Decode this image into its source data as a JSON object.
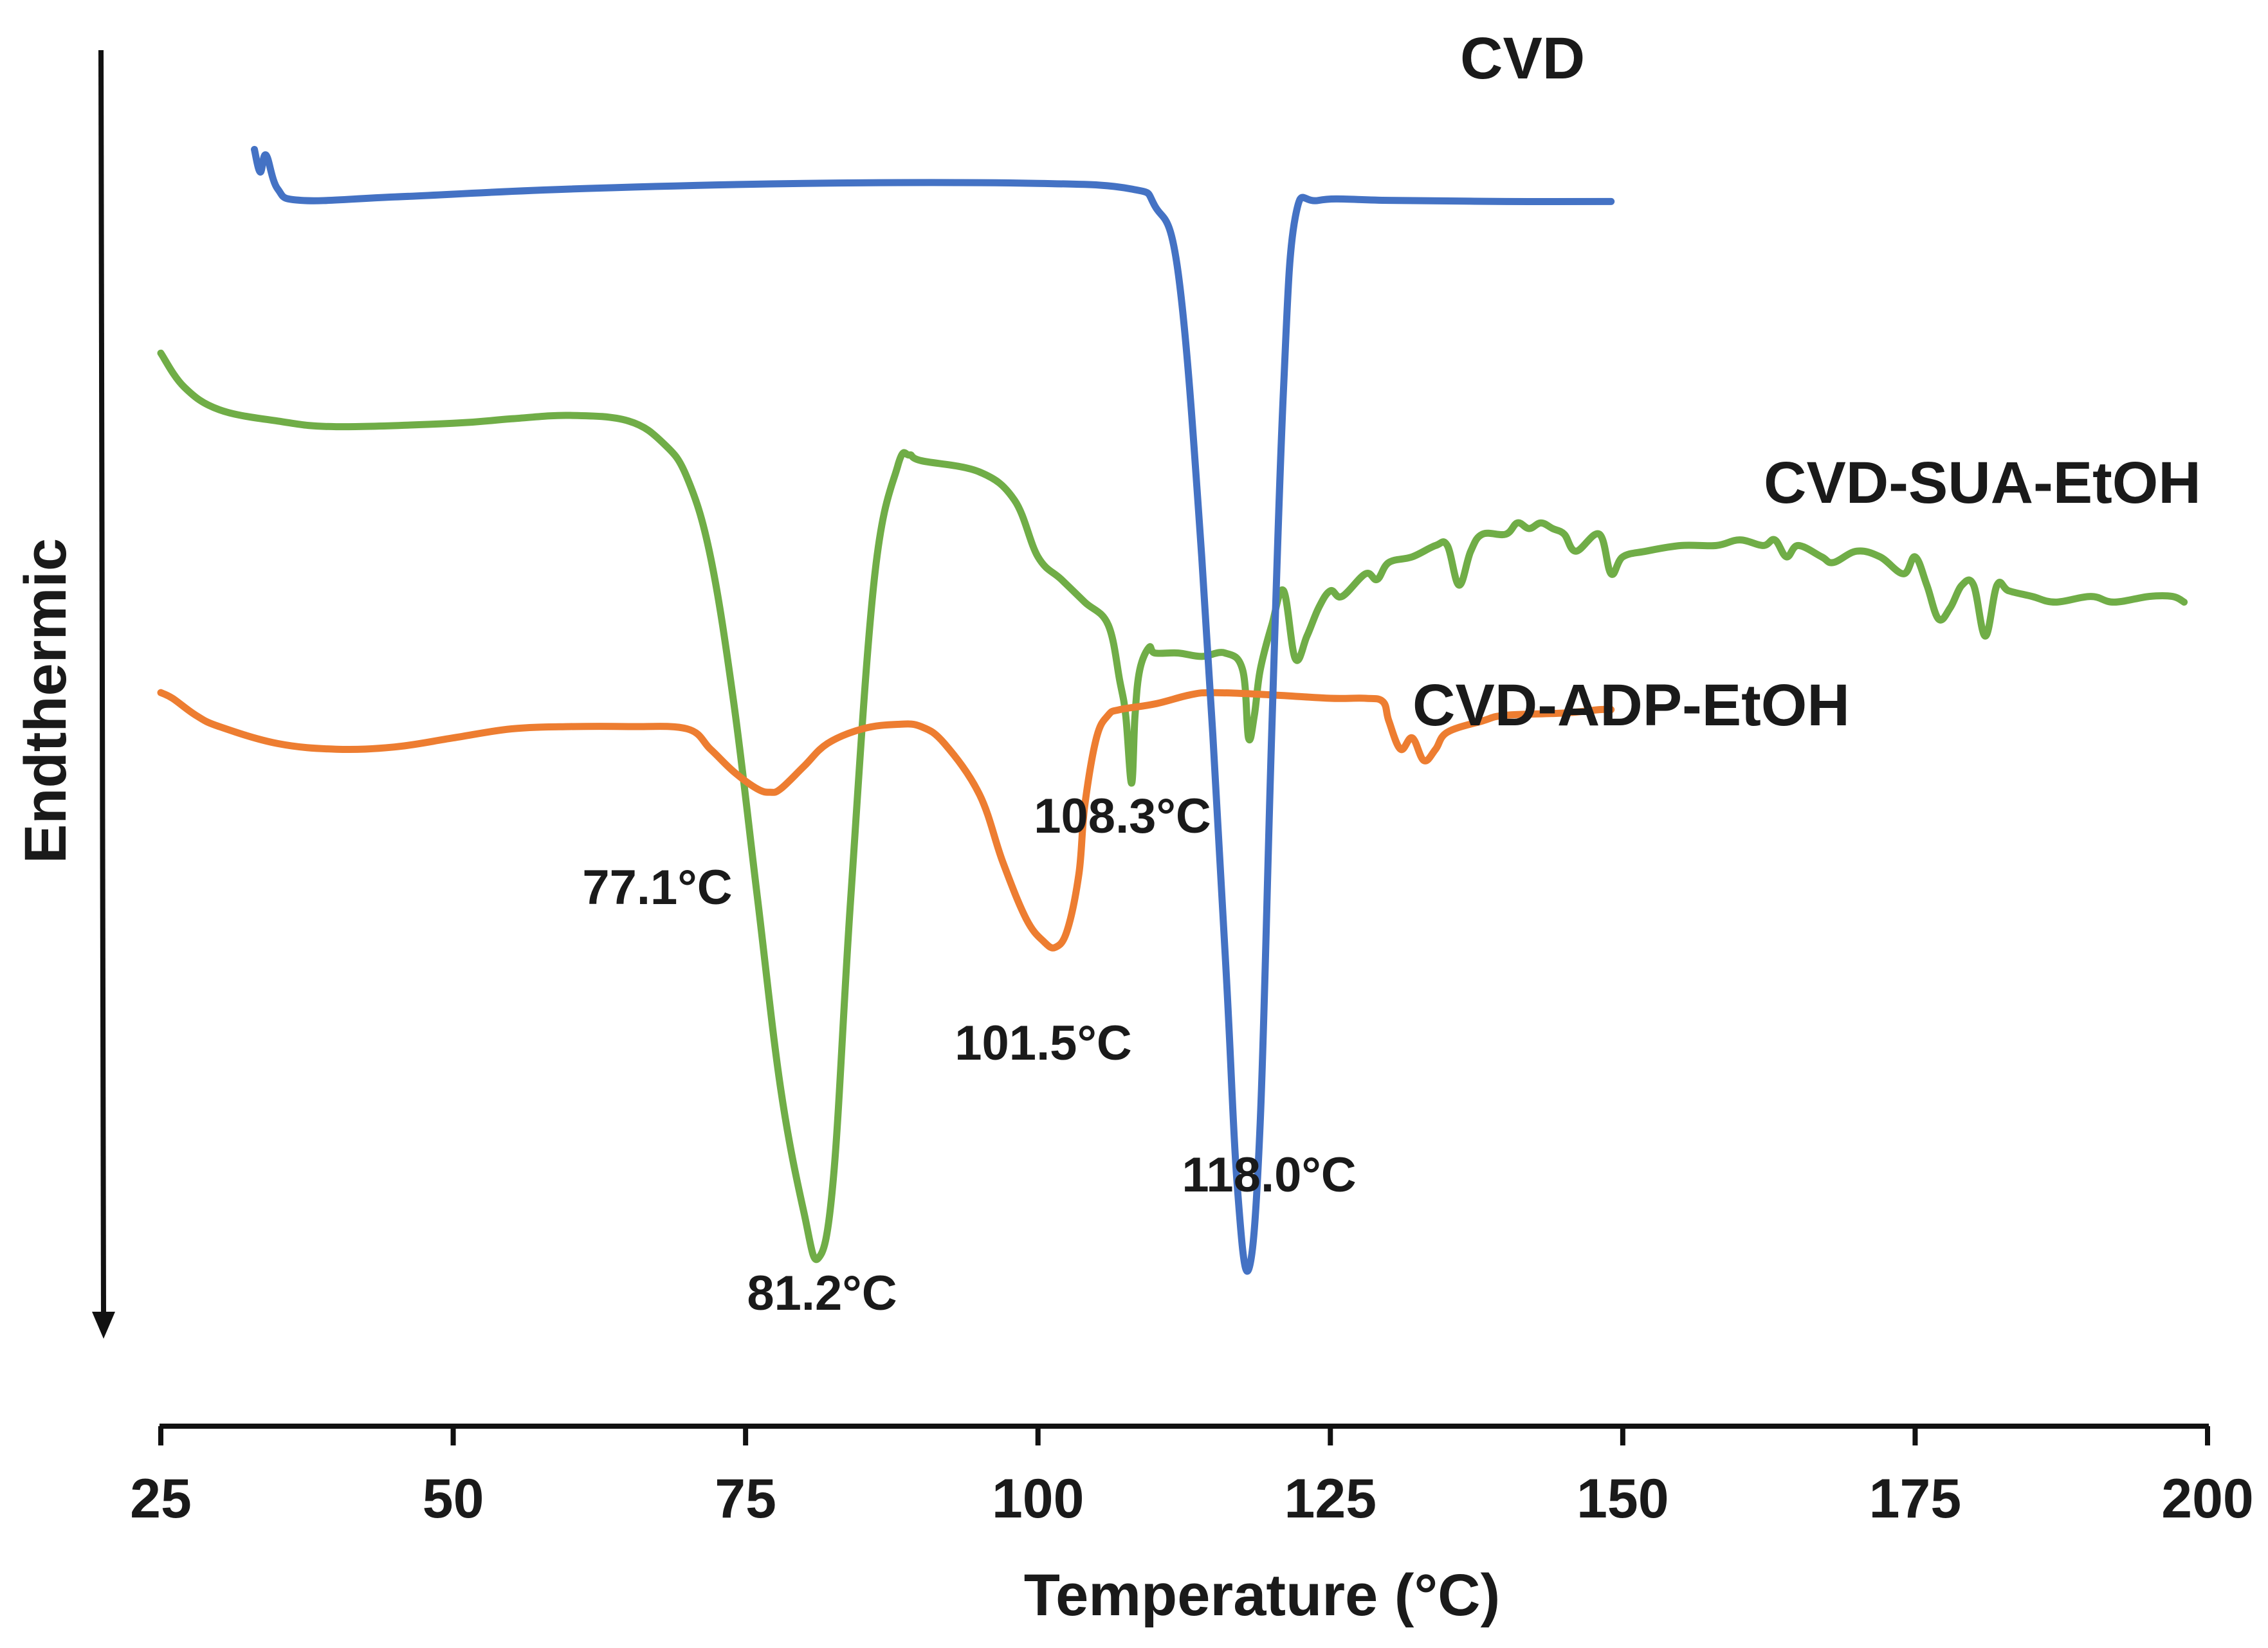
{
  "chart_data": {
    "type": "line",
    "title": "",
    "xlabel": "Temperature (°C)",
    "ylabel": "Endthermic",
    "xlim": [
      25,
      200
    ],
    "x_ticks": [
      "25",
      "50",
      "75",
      "100",
      "125",
      "150",
      "175",
      "200"
    ],
    "grid": false,
    "series": [
      {
        "name": "CVD",
        "color": "#4472C4",
        "x": [
          33,
          33.5,
          34,
          35,
          37,
          45,
          60,
          80,
          100,
          108,
          110,
          112,
          114,
          116,
          117,
          118,
          119,
          120,
          121,
          122,
          124,
          130,
          140,
          149
        ],
        "y": [
          0.96,
          0.94,
          0.955,
          0.925,
          0.915,
          0.918,
          0.925,
          0.93,
          0.93,
          0.925,
          0.91,
          0.85,
          0.6,
          0.25,
          0.05,
          -0.03,
          0.1,
          0.45,
          0.75,
          0.9,
          0.915,
          0.915,
          0.914,
          0.914
        ]
      },
      {
        "name": "CVD-SUA-EtOH",
        "color": "#70AD47",
        "x": [
          25,
          27,
          30,
          35,
          40,
          50,
          55,
          60,
          65,
          68,
          70,
          72,
          74,
          76,
          78,
          80,
          81.2,
          82.5,
          84,
          86,
          88,
          89,
          90,
          95,
          98,
          100,
          102,
          104,
          106,
          107,
          107.5,
          108,
          108.3,
          108.7,
          109.5,
          110,
          112,
          114,
          116,
          117.5,
          118,
          118.5,
          119,
          120,
          121,
          122,
          123,
          124,
          125,
          126,
          128,
          129,
          130,
          132,
          134,
          135,
          136,
          137,
          138,
          140,
          141,
          142,
          143,
          144,
          145,
          146,
          148,
          149,
          150,
          152,
          155,
          158,
          160,
          162,
          163,
          164,
          165,
          167,
          168,
          170,
          172,
          174,
          175,
          176,
          177,
          178,
          179,
          180,
          181,
          182,
          183,
          185,
          187,
          190,
          192,
          195,
          197,
          198
        ],
        "y": [
          0.78,
          0.75,
          0.73,
          0.72,
          0.715,
          0.718,
          0.722,
          0.725,
          0.72,
          0.7,
          0.67,
          0.6,
          0.47,
          0.3,
          0.13,
          0.02,
          -0.02,
          0.05,
          0.3,
          0.58,
          0.68,
          0.69,
          0.685,
          0.675,
          0.65,
          0.6,
          0.58,
          0.56,
          0.54,
          0.49,
          0.46,
          0.4,
          0.46,
          0.5,
          0.52,
          0.515,
          0.515,
          0.512,
          0.515,
          0.5,
          0.44,
          0.46,
          0.5,
          0.54,
          0.57,
          0.51,
          0.53,
          0.555,
          0.57,
          0.565,
          0.585,
          0.58,
          0.595,
          0.6,
          0.61,
          0.61,
          0.575,
          0.605,
          0.62,
          0.62,
          0.63,
          0.625,
          0.63,
          0.625,
          0.62,
          0.605,
          0.62,
          0.585,
          0.6,
          0.605,
          0.61,
          0.61,
          0.615,
          0.61,
          0.615,
          0.6,
          0.61,
          0.6,
          0.595,
          0.605,
          0.6,
          0.585,
          0.6,
          0.575,
          0.545,
          0.555,
          0.575,
          0.575,
          0.53,
          0.575,
          0.57,
          0.565,
          0.56,
          0.565,
          0.56,
          0.565,
          0.565,
          0.56
        ]
      },
      {
        "name": "CVD-ADP-EtOH",
        "color": "#ED7D31",
        "x": [
          25,
          26,
          28,
          30,
          35,
          40,
          45,
          50,
          55,
          60,
          65,
          70,
          72,
          74,
          76,
          77.1,
          78,
          80,
          82,
          85,
          88,
          90,
          92,
          95,
          97,
          99,
          100.5,
          101.5,
          102.5,
          103.5,
          104,
          105,
          106,
          107,
          110,
          113,
          115,
          120,
          125,
          128,
          129.5,
          130,
          131,
          132,
          133,
          134,
          135,
          138,
          140,
          145,
          148,
          149
        ],
        "y": [
          0.48,
          0.475,
          0.46,
          0.45,
          0.435,
          0.43,
          0.432,
          0.44,
          0.448,
          0.45,
          0.45,
          0.448,
          0.43,
          0.41,
          0.395,
          0.392,
          0.395,
          0.415,
          0.435,
          0.448,
          0.452,
          0.45,
          0.435,
          0.39,
          0.33,
          0.28,
          0.26,
          0.255,
          0.27,
          0.32,
          0.38,
          0.44,
          0.46,
          0.465,
          0.47,
          0.478,
          0.48,
          0.478,
          0.475,
          0.475,
          0.472,
          0.455,
          0.43,
          0.44,
          0.42,
          0.43,
          0.445,
          0.455,
          0.46,
          0.462,
          0.465,
          0.465
        ]
      }
    ],
    "annotations": [
      {
        "text": "77.1°C",
        "x": 77.1,
        "series": "CVD-ADP-EtOH"
      },
      {
        "text": "81.2°C",
        "x": 81.2,
        "series": "CVD-SUA-EtOH"
      },
      {
        "text": "101.5°C",
        "x": 101.5,
        "series": "CVD-ADP-EtOH"
      },
      {
        "text": "108.3°C",
        "x": 108.3,
        "series": "CVD-SUA-EtOH"
      },
      {
        "text": "118.0°C",
        "x": 118.0,
        "series": "CVD"
      }
    ]
  }
}
